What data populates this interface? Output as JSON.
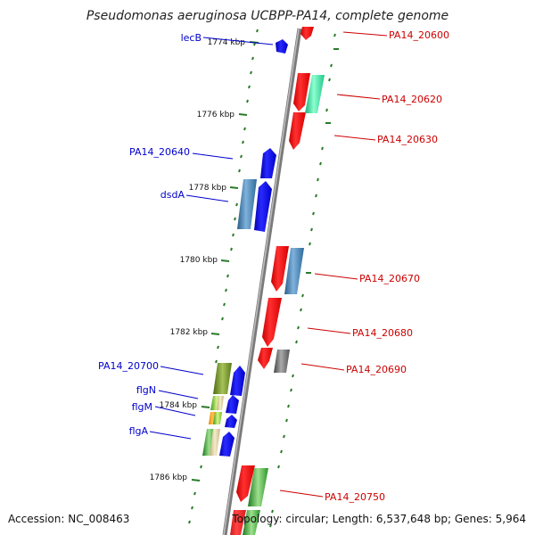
{
  "title": "Pseudomonas aeruginosa UCBPP-PA14, complete genome",
  "footer": {
    "accession": "Accession: NC_008463",
    "topology": "Topology: circular; Length: 6,537,648 bp; Genes: 5,964"
  },
  "kbp_labels": [
    "1774 kbp",
    "1776 kbp",
    "1778 kbp",
    "1780 kbp",
    "1782 kbp",
    "1784 kbp",
    "1786 kbp"
  ],
  "colors": {
    "backbone": "#888888",
    "tick": "#2a7a2a",
    "minus_strand_label": "#0000cc",
    "plus_strand_label": "#cc0000"
  },
  "genes_left": [
    {
      "label": "lecB",
      "fill": "blue"
    },
    {
      "label": "PA14_20640",
      "fill": "blue"
    },
    {
      "label": "dsdA",
      "fill": "blue",
      "ring": "steelblue"
    },
    {
      "label": "PA14_20700",
      "fill": "blue",
      "ring": "olive"
    },
    {
      "label": "flgN",
      "fill": "blue",
      "ring": "lime"
    },
    {
      "label": "flgM",
      "fill": "blue",
      "ring": "orange-lime"
    },
    {
      "label": "flgA",
      "fill": "blue",
      "ring": "green"
    }
  ],
  "genes_right": [
    {
      "label": "PA14_20600",
      "fill": "red"
    },
    {
      "label": "PA14_20620",
      "fill": "red",
      "ring": "aquamarine"
    },
    {
      "label": "PA14_20630",
      "fill": "red"
    },
    {
      "label": "PA14_20670",
      "fill": "red",
      "ring": "steelblue"
    },
    {
      "label": "PA14_20680",
      "fill": "red"
    },
    {
      "label": "PA14_20690",
      "fill": "red",
      "ring": "gray"
    },
    {
      "label": "PA14_20750",
      "fill": "red",
      "ring": "green"
    }
  ]
}
